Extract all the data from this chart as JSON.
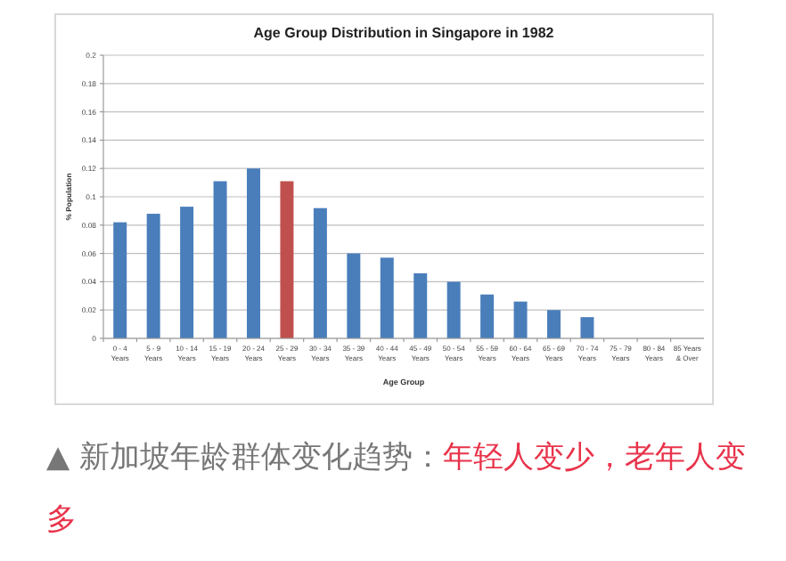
{
  "chart_data": {
    "type": "bar",
    "title": "Age Group Distribution in Singapore in 1982",
    "xlabel": "Age Group",
    "ylabel": "% Population",
    "categories": [
      "0 - 4\nYears",
      "5 - 9\nYears",
      "10 - 14\nYears",
      "15 - 19\nYears",
      "20 - 24\nYears",
      "25 - 29\nYears",
      "30 - 34\nYears",
      "35 - 39\nYears",
      "40 - 44\nYears",
      "45 - 49\nYears",
      "50 - 54\nYears",
      "55 - 59\nYears",
      "60 - 64\nYears",
      "65 - 69\nYears",
      "70 - 74\nYears",
      "75 - 79\nYears",
      "80 - 84\nYears",
      "85 Years\n& Over"
    ],
    "values": [
      0.082,
      0.088,
      0.093,
      0.111,
      0.12,
      0.111,
      0.092,
      0.06,
      0.057,
      0.046,
      0.04,
      0.031,
      0.026,
      0.02,
      0.015,
      0,
      0,
      0
    ],
    "colors": [
      "#4a7ebb",
      "#4a7ebb",
      "#4a7ebb",
      "#4a7ebb",
      "#4a7ebb",
      "#c0504d",
      "#4a7ebb",
      "#4a7ebb",
      "#4a7ebb",
      "#4a7ebb",
      "#4a7ebb",
      "#4a7ebb",
      "#4a7ebb",
      "#4a7ebb",
      "#4a7ebb",
      "#4a7ebb",
      "#4a7ebb",
      "#4a7ebb"
    ],
    "ylim": [
      0,
      0.2
    ],
    "yticks": [
      0,
      0.02,
      0.04,
      0.06,
      0.08,
      0.1,
      0.12,
      0.14,
      0.16,
      0.18,
      0.2
    ],
    "grid": "y",
    "annotations": [
      "▲ 新加坡年龄群体变化趋势：",
      "年轻人变少，老年人变多"
    ]
  }
}
